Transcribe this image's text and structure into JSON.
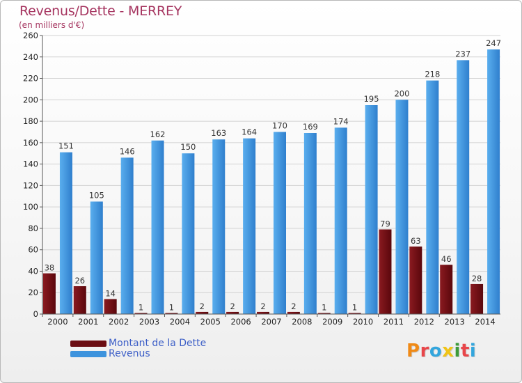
{
  "header": {
    "title": "Revenus/Dette - MERREY",
    "subtitle": "(en milliers d'€)"
  },
  "legend": {
    "items": [
      {
        "label": "Montant de la Dette",
        "color": "#6b0d12"
      },
      {
        "label": "Revenus",
        "color": "#3d93dd"
      }
    ]
  },
  "logo": {
    "text": "Proxiti",
    "colors": [
      "#f08a16",
      "#e8464a",
      "#33a6dd",
      "#f0c417",
      "#3d9b3a",
      "#e8464a",
      "#33a6dd"
    ]
  },
  "chart_data": {
    "type": "bar",
    "title": "Revenus/Dette - MERREY",
    "subtitle": "(en milliers d'€)",
    "categories": [
      "2000",
      "2001",
      "2002",
      "2003",
      "2004",
      "2005",
      "2006",
      "2007",
      "2008",
      "2009",
      "2010",
      "2011",
      "2012",
      "2013",
      "2014"
    ],
    "series": [
      {
        "name": "Montant de la Dette",
        "color": "#6b0d12",
        "values": [
          38,
          26,
          14,
          1,
          1,
          2,
          2,
          2,
          2,
          1,
          1,
          79,
          63,
          46,
          28
        ]
      },
      {
        "name": "Revenus",
        "color": "#3d93dd",
        "values": [
          151,
          105,
          146,
          162,
          150,
          163,
          164,
          170,
          169,
          174,
          195,
          200,
          218,
          237,
          247
        ]
      }
    ],
    "ylim": [
      0,
      260
    ],
    "yticks": [
      0,
      20,
      40,
      60,
      80,
      100,
      120,
      140,
      160,
      180,
      200,
      220,
      240,
      260
    ],
    "grid": true,
    "legend_position": "bottom-left"
  }
}
